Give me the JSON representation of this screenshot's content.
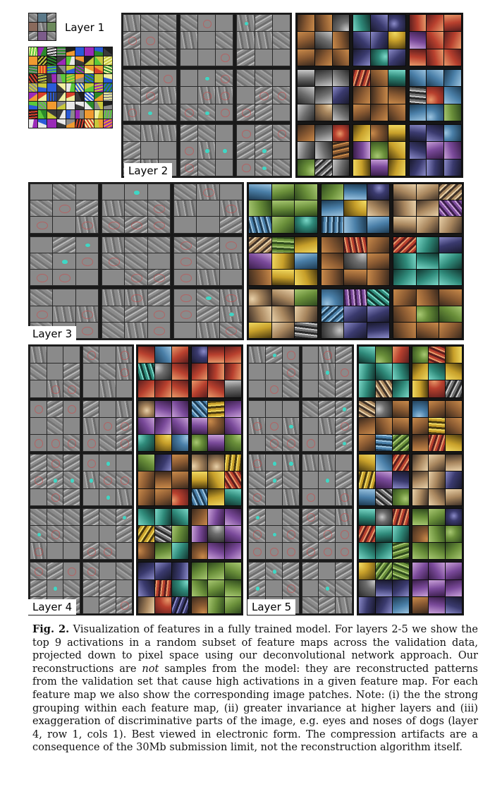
{
  "layers": {
    "layer1": "Layer 1",
    "layer2": "Layer 2",
    "layer3": "Layer 3",
    "layer4": "Layer 4",
    "layer5": "Layer 5"
  },
  "caption": {
    "label": "Fig. 2.",
    "part1": " Visualization of features in a fully trained model. For layers 2-5 we show the top 9 activations in a random subset of feature maps across the validation data, projected down to pixel space using our deconvolutional network approach. Our reconstructions are ",
    "emphasis": "not",
    "part2": " samples from the model: they are reconstructed patterns from the validation set that cause high activations in a given feature map. For each feature map we also show the corresponding image patches. Note: (i) the the strong grouping within each feature map, (ii) greater invariance at higher layers and (iii) exaggeration of discriminative parts of the image, e.g. eyes and noses of dogs (layer 4, row 1, cols 1). Best viewed in electronic form. The compression artifacts are a consequence of the 30Mb submission limit, not the reconstruction algorithm itself."
  },
  "palette": {
    "recon_gray": "#7a7a7a",
    "frame_dark": "#161616",
    "accent_cyan": "#3fd6c6",
    "accent_red": "#d24646"
  }
}
